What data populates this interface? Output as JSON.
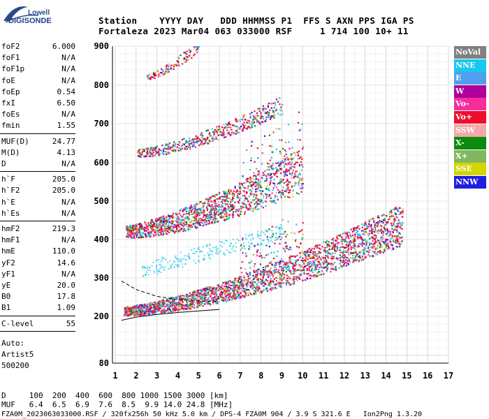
{
  "logo": {
    "line1": "Lowell",
    "line2": "DIGISONDE"
  },
  "header": {
    "row1": "Station    YYYY DAY   DDD HHMMSS P1  FFS S AXN PPS IGA PS",
    "row2": "Fortaleza 2023 Mar04 063 033000 RSF     1 714 100 10+ 11"
  },
  "params": [
    {
      "group": [
        {
          "name": "foF2",
          "value": "6.000"
        },
        {
          "name": "foF1",
          "value": "N/A"
        },
        {
          "name": "foF1p",
          "value": "N/A"
        },
        {
          "name": "foE",
          "value": "N/A"
        },
        {
          "name": "foEp",
          "value": "0.54"
        },
        {
          "name": "fxI",
          "value": "6.50"
        },
        {
          "name": "foEs",
          "value": "N/A"
        },
        {
          "name": "fmin",
          "value": "1.55"
        }
      ]
    },
    {
      "group": [
        {
          "name": "MUF(D)",
          "value": "24.77"
        },
        {
          "name": "M(D)",
          "value": "4.13"
        },
        {
          "name": "D",
          "value": "N/A"
        }
      ]
    },
    {
      "group": [
        {
          "name": "h`F",
          "value": "205.0"
        },
        {
          "name": "h`F2",
          "value": "205.0"
        },
        {
          "name": "h`E",
          "value": "N/A"
        },
        {
          "name": "h`Es",
          "value": "N/A"
        }
      ]
    },
    {
      "group": [
        {
          "name": "hmF2",
          "value": "219.3"
        },
        {
          "name": "hmF1",
          "value": "N/A"
        },
        {
          "name": "hmE",
          "value": "110.0"
        },
        {
          "name": "yF2",
          "value": "14.6"
        },
        {
          "name": "yF1",
          "value": "N/A"
        },
        {
          "name": "yE",
          "value": "20.0"
        },
        {
          "name": "B0",
          "value": "17.8"
        },
        {
          "name": "B1",
          "value": "1.09"
        }
      ]
    },
    {
      "group": [
        {
          "name": "C-level",
          "value": "55"
        }
      ]
    }
  ],
  "auto": {
    "line1": "Auto:",
    "line2": "Artist5",
    "line3": "500200"
  },
  "legend": [
    {
      "label": "NoVal",
      "color": "#808080"
    },
    {
      "label": "NNE",
      "color": "#17c8f0"
    },
    {
      "label": "E",
      "color": "#4fa0ef"
    },
    {
      "label": "W",
      "color": "#b0009c"
    },
    {
      "label": "Vo-",
      "color": "#f52e9c"
    },
    {
      "label": "Vo+",
      "color": "#ef0d2e"
    },
    {
      "label": "SSW",
      "color": "#f4a9a8"
    },
    {
      "label": "X-",
      "color": "#0c8a0c"
    },
    {
      "label": "X+",
      "color": "#80b860"
    },
    {
      "label": "SSE",
      "color": "#d4d400"
    },
    {
      "label": "NNW",
      "color": "#1e1ee0"
    }
  ],
  "chart_data": {
    "type": "scatter",
    "x_ticks": [
      "1",
      "2",
      "3",
      "4",
      "5",
      "6",
      "7",
      "8",
      "9",
      "10",
      "11",
      "12",
      "13",
      "14",
      "15",
      "16",
      "17"
    ],
    "y_ticks": [
      "80",
      "200",
      "300",
      "400",
      "500",
      "600",
      "700",
      "800",
      "900"
    ],
    "xlim": [
      1,
      17
    ],
    "ylim_ticks": [
      80,
      900
    ],
    "grid": true,
    "traces": [
      {
        "name": "1st hop",
        "x_range": [
          1.4,
          14.8
        ],
        "y_start": 210,
        "y_end": 420
      },
      {
        "name": "2nd hop",
        "x_range": [
          1.5,
          10.0
        ],
        "y_start": 415,
        "y_end": 560
      },
      {
        "name": "3rd hop",
        "x_range": [
          2.0,
          9.0
        ],
        "y_start": 620,
        "y_end": 740
      },
      {
        "name": "4th hop",
        "x_range": [
          2.5,
          5.0
        ],
        "y_start": 820,
        "y_end": 895
      }
    ],
    "profile_curve": [
      [
        1.3,
        292
      ],
      [
        2,
        270
      ],
      [
        3,
        252
      ],
      [
        4,
        244
      ],
      [
        5,
        240
      ],
      [
        6,
        238
      ]
    ],
    "solid_curve": [
      [
        1.3,
        190
      ],
      [
        2,
        198
      ],
      [
        3,
        205
      ],
      [
        4,
        210
      ],
      [
        5,
        214
      ],
      [
        6,
        218
      ]
    ]
  },
  "bottom": {
    "line1": "D     100  200  400  600  800 1000 1500 3000 [km]",
    "line2": "MUF   6.4  6.5  6.9  7.6  8.5  9.9 14.0 24.8 [MHz]",
    "line3": "FZA0M_2023063033000.RSF / 320fx256h 50 kHz 5.0 km / DPS-4 FZA0M 904 / 3.9 S 321.6 E   Ion2Png 1.3.20"
  }
}
